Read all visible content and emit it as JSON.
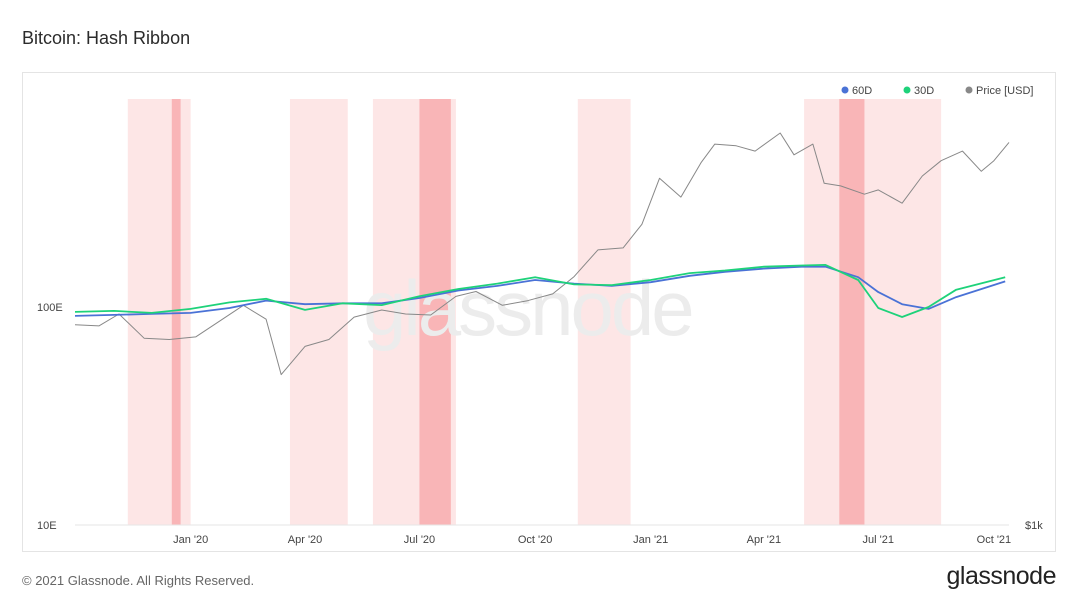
{
  "page": {
    "title": "Bitcoin: Hash Ribbon",
    "footer": "© 2021 Glassnode. All Rights Reserved.",
    "brand": "glassnode",
    "watermark": "glassnode"
  },
  "chart_data": {
    "type": "line",
    "title": "Bitcoin: Hash Ribbon",
    "xlim": [
      "2019-10-01",
      "2021-10-13"
    ],
    "y_left": {
      "scale": "log",
      "ticks": [
        10,
        100
      ],
      "tick_labels": [
        "10E",
        "100E"
      ]
    },
    "y_right": {
      "scale": "log",
      "tick_labels": [
        "$1k"
      ]
    },
    "x_ticks": [
      {
        "date": "2020-01-01",
        "label": "Jan '20"
      },
      {
        "date": "2020-04-01",
        "label": "Apr '20"
      },
      {
        "date": "2020-07-01",
        "label": "Jul '20"
      },
      {
        "date": "2020-10-01",
        "label": "Oct '20"
      },
      {
        "date": "2021-01-01",
        "label": "Jan '21"
      },
      {
        "date": "2021-04-01",
        "label": "Apr '21"
      },
      {
        "date": "2021-07-01",
        "label": "Jul '21"
      },
      {
        "date": "2021-10-01",
        "label": "Oct '21"
      }
    ],
    "legend": {
      "placement": "top-right"
    },
    "series": [
      {
        "name": "60D",
        "color": "#4a72d6",
        "axis": "left",
        "dates": [
          "2019-10-01",
          "2019-11-01",
          "2019-12-01",
          "2020-01-01",
          "2020-02-01",
          "2020-03-01",
          "2020-04-01",
          "2020-05-01",
          "2020-06-01",
          "2020-07-01",
          "2020-08-01",
          "2020-09-01",
          "2020-10-01",
          "2020-11-01",
          "2020-12-01",
          "2021-01-01",
          "2021-02-01",
          "2021-03-01",
          "2021-04-01",
          "2021-05-01",
          "2021-05-20",
          "2021-06-15",
          "2021-07-01",
          "2021-07-20",
          "2021-08-10",
          "2021-09-01",
          "2021-10-10"
        ],
        "values": [
          91,
          92,
          93,
          94,
          99,
          107,
          103,
          104,
          104,
          110,
          119,
          125,
          133,
          128,
          125,
          130,
          139,
          145,
          150,
          153,
          153,
          137,
          117,
          103,
          98,
          111,
          131
        ]
      },
      {
        "name": "30D",
        "color": "#1ed27a",
        "axis": "left",
        "dates": [
          "2019-10-01",
          "2019-11-01",
          "2019-12-01",
          "2020-01-01",
          "2020-02-01",
          "2020-03-01",
          "2020-04-01",
          "2020-05-01",
          "2020-06-01",
          "2020-07-01",
          "2020-08-01",
          "2020-09-01",
          "2020-10-01",
          "2020-11-01",
          "2020-12-01",
          "2021-01-01",
          "2021-02-01",
          "2021-03-01",
          "2021-04-01",
          "2021-05-01",
          "2021-05-20",
          "2021-06-15",
          "2021-07-01",
          "2021-07-20",
          "2021-08-10",
          "2021-09-01",
          "2021-10-10"
        ],
        "values": [
          95,
          96,
          94,
          98,
          105,
          109,
          97,
          104,
          102,
          112,
          121,
          128,
          137,
          127,
          126,
          133,
          143,
          147,
          153,
          155,
          156,
          133,
          99,
          90,
          100,
          120,
          137
        ]
      },
      {
        "name": "Price [USD]",
        "color": "#888888",
        "axis": "right",
        "price_min": 1000,
        "price_max": 70000,
        "dates": [
          "2019-10-01",
          "2019-10-20",
          "2019-11-05",
          "2019-11-25",
          "2019-12-15",
          "2020-01-05",
          "2020-01-25",
          "2020-02-12",
          "2020-03-01",
          "2020-03-13",
          "2020-04-01",
          "2020-04-20",
          "2020-05-10",
          "2020-06-01",
          "2020-06-20",
          "2020-07-10",
          "2020-07-30",
          "2020-08-15",
          "2020-09-05",
          "2020-09-25",
          "2020-10-15",
          "2020-11-01",
          "2020-11-20",
          "2020-12-10",
          "2020-12-25",
          "2021-01-08",
          "2021-01-25",
          "2021-02-10",
          "2021-02-21",
          "2021-03-10",
          "2021-03-25",
          "2021-04-14",
          "2021-04-25",
          "2021-05-10",
          "2021-05-19",
          "2021-06-01",
          "2021-06-20",
          "2021-07-01",
          "2021-07-20",
          "2021-08-05",
          "2021-08-20",
          "2021-09-06",
          "2021-09-21",
          "2021-10-01",
          "2021-10-13"
        ],
        "values": [
          8300,
          8200,
          9300,
          7200,
          7100,
          7300,
          8700,
          10200,
          8800,
          4900,
          6600,
          7100,
          9000,
          9700,
          9300,
          9200,
          11200,
          11800,
          10200,
          10700,
          11500,
          13800,
          18300,
          18700,
          24000,
          39000,
          32000,
          46000,
          56000,
          55000,
          52000,
          63000,
          50000,
          56000,
          37000,
          36000,
          33000,
          34500,
          30000,
          40000,
          47000,
          52000,
          42000,
          47000,
          57000
        ]
      }
    ],
    "shaded_regions": [
      {
        "start": "2019-11-12",
        "end": "2020-01-01",
        "intensity": "light"
      },
      {
        "start": "2019-12-17",
        "end": "2019-12-24",
        "intensity": "dark"
      },
      {
        "start": "2020-03-20",
        "end": "2020-05-05",
        "intensity": "light"
      },
      {
        "start": "2020-05-25",
        "end": "2020-07-30",
        "intensity": "light"
      },
      {
        "start": "2020-07-01",
        "end": "2020-07-26",
        "intensity": "dark"
      },
      {
        "start": "2020-11-04",
        "end": "2020-12-16",
        "intensity": "light"
      },
      {
        "start": "2021-05-03",
        "end": "2021-08-20",
        "intensity": "light"
      },
      {
        "start": "2021-05-31",
        "end": "2021-06-20",
        "intensity": "dark"
      }
    ]
  }
}
